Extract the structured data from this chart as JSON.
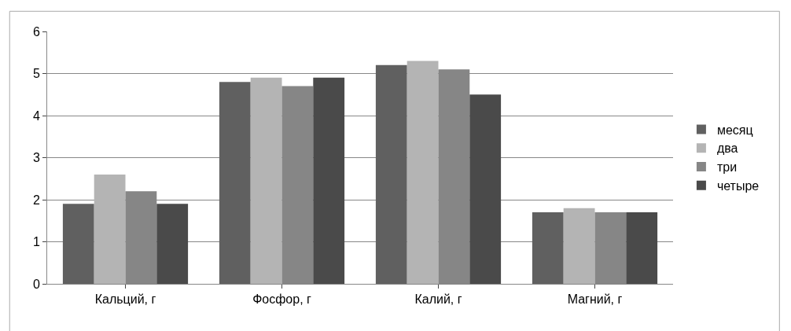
{
  "chart_data": {
    "type": "bar",
    "categories": [
      "Кальций, г",
      "Фосфор, г",
      "Калий, г",
      "Магний, г"
    ],
    "series": [
      {
        "name": "месяц",
        "color": "#606060",
        "values": [
          1.9,
          4.8,
          5.2,
          1.7
        ]
      },
      {
        "name": "два",
        "color": "#b4b4b4",
        "values": [
          2.6,
          4.9,
          5.3,
          1.8
        ]
      },
      {
        "name": "три",
        "color": "#868686",
        "values": [
          2.2,
          4.7,
          5.1,
          1.7
        ]
      },
      {
        "name": "четыре",
        "color": "#4a4a4a",
        "values": [
          1.9,
          4.9,
          4.5,
          1.7
        ]
      }
    ],
    "ylim": [
      0,
      6
    ],
    "yticks": [
      0,
      1,
      2,
      3,
      4,
      5,
      6
    ],
    "grid": "y",
    "legend": "right"
  }
}
